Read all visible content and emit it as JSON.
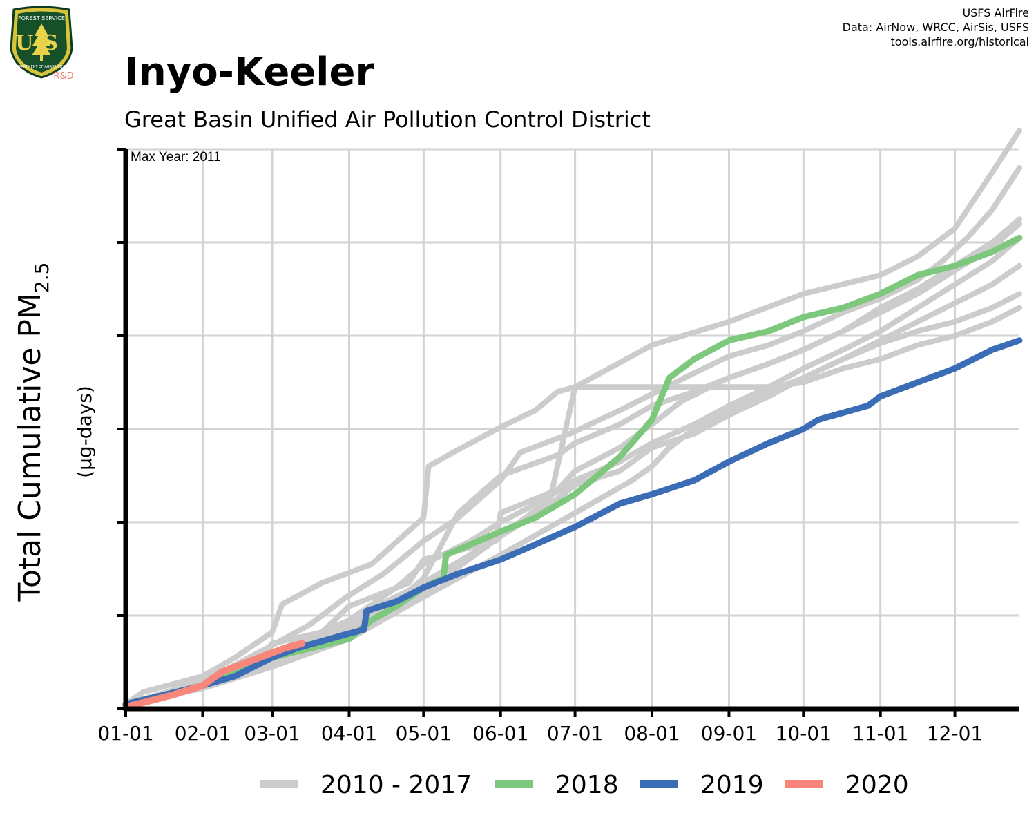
{
  "header": {
    "title": "Inyo-Keeler",
    "subtitle": "Great Basin Unified Air Pollution Control District",
    "credits": [
      "USFS AirFire",
      "Data: AirNow, WRCC, AirSis, USFS",
      "tools.airfire.org/historical"
    ]
  },
  "logo": {
    "top_text": "FOREST SERVICE",
    "letters": "US",
    "bottom_text": "DEPARTMENT OF AGRICULTURE",
    "badge": "R&D"
  },
  "colors": {
    "historical": "#cccccc",
    "y2018": "#7dc87d",
    "y2019": "#3a6db5",
    "y2020": "#f8867a",
    "grid": "#d3d3d3",
    "axis": "#000000"
  },
  "chart_data": {
    "type": "line",
    "annotation": "Max Year: 2011",
    "xlabel": "",
    "ylabel": "Total Cumulative PM",
    "ylabel_subscript": "2.5",
    "ylabel_unit": "(µg-days)",
    "x_tick_labels": [
      "01-01",
      "02-01",
      "03-01",
      "04-01",
      "05-01",
      "06-01",
      "07-01",
      "08-01",
      "09-01",
      "10-01",
      "11-01",
      "12-01"
    ],
    "x_unit": "day of year",
    "xlim": [
      1,
      361
    ],
    "ylim": [
      0,
      6
    ],
    "y_ticks": [
      0,
      1,
      2,
      3,
      4,
      5,
      6
    ],
    "y_tick_labels_shown": false,
    "legend_position": "bottom",
    "legend": [
      "2010 - 2017",
      "2018",
      "2019",
      "2020"
    ],
    "series": [
      {
        "name": "2010 - 2017",
        "group": "historical",
        "x": [
          1,
          8,
          32,
          45,
          60,
          64,
          80,
          100,
          121,
          123,
          135,
          152,
          166,
          175,
          182,
          213,
          244,
          274,
          305,
          320,
          335,
          350,
          361
        ],
        "y": [
          0.05,
          0.18,
          0.35,
          0.55,
          0.82,
          1.12,
          1.35,
          1.55,
          2.05,
          2.6,
          2.78,
          3.02,
          3.2,
          3.4,
          3.45,
          3.9,
          4.15,
          4.45,
          4.65,
          4.85,
          5.15,
          5.75,
          6.2
        ]
      },
      {
        "name": "2010 - 2017",
        "group": "historical",
        "x": [
          1,
          20,
          40,
          60,
          75,
          90,
          105,
          121,
          135,
          152,
          160,
          180,
          200,
          215,
          230,
          244,
          260,
          274,
          290,
          305,
          320,
          330,
          340,
          350,
          361
        ],
        "y": [
          0.05,
          0.2,
          0.4,
          0.68,
          0.9,
          1.2,
          1.45,
          1.8,
          2.05,
          2.45,
          2.75,
          2.95,
          3.2,
          3.4,
          3.6,
          3.78,
          3.9,
          4.05,
          4.25,
          4.4,
          4.6,
          4.8,
          5.05,
          5.35,
          5.8
        ]
      },
      {
        "name": "2010 - 2017",
        "group": "historical",
        "x": [
          1,
          30,
          60,
          90,
          110,
          121,
          135,
          152,
          175,
          182,
          200,
          213,
          230,
          244,
          260,
          274,
          290,
          305,
          320,
          335,
          350,
          361
        ],
        "y": [
          0.05,
          0.22,
          0.55,
          0.9,
          1.15,
          1.4,
          2.1,
          2.5,
          2.72,
          2.85,
          3.05,
          3.25,
          3.4,
          3.55,
          3.7,
          3.85,
          4.05,
          4.3,
          4.5,
          4.75,
          5.0,
          5.25
        ]
      },
      {
        "name": "2010 - 2017",
        "group": "historical",
        "x": [
          1,
          32,
          60,
          91,
          110,
          121,
          140,
          152,
          170,
          182,
          200,
          213,
          230,
          244,
          260,
          274,
          290,
          305,
          320,
          335,
          350,
          361
        ],
        "y": [
          0.05,
          0.25,
          0.6,
          0.95,
          1.3,
          1.55,
          1.8,
          2.0,
          2.25,
          2.45,
          2.65,
          2.85,
          3.05,
          3.25,
          3.45,
          3.65,
          3.85,
          4.05,
          4.3,
          4.55,
          4.8,
          5.05
        ]
      },
      {
        "name": "2010 - 2017",
        "group": "historical",
        "x": [
          1,
          25,
          50,
          60,
          80,
          91,
          115,
          121,
          150,
          152,
          175,
          182,
          200,
          213,
          225,
          244,
          260,
          274,
          290,
          305,
          320,
          335,
          350,
          361
        ],
        "y": [
          0.05,
          0.22,
          0.4,
          0.7,
          0.82,
          1.1,
          1.35,
          1.6,
          1.8,
          2.1,
          2.35,
          2.55,
          2.8,
          3.05,
          3.3,
          3.55,
          3.7,
          3.85,
          4.05,
          4.25,
          4.45,
          4.7,
          4.95,
          5.2
        ]
      },
      {
        "name": "2010 - 2017",
        "group": "historical",
        "x": [
          1,
          32,
          60,
          91,
          121,
          152,
          170,
          182,
          200,
          213,
          230,
          244,
          260,
          274,
          290,
          305,
          320,
          335,
          350,
          361
        ],
        "y": [
          0.05,
          0.22,
          0.5,
          0.85,
          1.25,
          1.85,
          2.15,
          2.4,
          2.55,
          2.8,
          2.95,
          3.15,
          3.35,
          3.55,
          3.75,
          3.95,
          4.15,
          4.35,
          4.55,
          4.75
        ]
      },
      {
        "name": "2010 - 2017",
        "group": "historical",
        "x": [
          1,
          32,
          60,
          91,
          121,
          152,
          182,
          205,
          213,
          220,
          230,
          244,
          260,
          274,
          290,
          305,
          320,
          335,
          350,
          361
        ],
        "y": [
          0.05,
          0.22,
          0.45,
          0.75,
          1.2,
          1.65,
          2.1,
          2.45,
          2.6,
          2.8,
          3.0,
          3.2,
          3.4,
          3.55,
          3.75,
          3.92,
          4.05,
          4.15,
          4.3,
          4.45
        ]
      },
      {
        "name": "2010 - 2017",
        "group": "historical",
        "x": [
          1,
          32,
          60,
          91,
          121,
          152,
          172,
          182,
          195,
          213,
          230,
          244,
          260,
          274,
          290,
          305,
          320,
          335,
          350,
          361
        ],
        "y": [
          0.05,
          0.25,
          0.55,
          0.95,
          1.35,
          1.85,
          2.25,
          3.45,
          3.45,
          3.45,
          3.45,
          3.45,
          3.45,
          3.5,
          3.65,
          3.75,
          3.9,
          4.0,
          4.15,
          4.3
        ]
      },
      {
        "name": "2018",
        "group": "y2018",
        "x": [
          1,
          32,
          60,
          91,
          100,
          110,
          121,
          129,
          130,
          152,
          166,
          182,
          200,
          213,
          220,
          230,
          244,
          260,
          274,
          290,
          305,
          320,
          335,
          350,
          361
        ],
        "y": [
          0.05,
          0.25,
          0.55,
          0.75,
          0.95,
          1.1,
          1.3,
          1.4,
          1.65,
          1.9,
          2.05,
          2.3,
          2.7,
          3.1,
          3.55,
          3.75,
          3.95,
          4.05,
          4.2,
          4.3,
          4.45,
          4.65,
          4.75,
          4.9,
          5.05
        ]
      },
      {
        "name": "2019",
        "group": "y2019",
        "x": [
          1,
          32,
          45,
          60,
          70,
          90,
          97,
          98,
          110,
          121,
          135,
          152,
          165,
          182,
          200,
          213,
          230,
          244,
          260,
          274,
          280,
          300,
          305,
          320,
          335,
          350,
          361
        ],
        "y": [
          0.05,
          0.25,
          0.35,
          0.55,
          0.65,
          0.8,
          0.85,
          1.05,
          1.15,
          1.3,
          1.45,
          1.6,
          1.75,
          1.95,
          2.2,
          2.3,
          2.45,
          2.65,
          2.85,
          3.0,
          3.1,
          3.25,
          3.35,
          3.5,
          3.65,
          3.85,
          3.95
        ]
      },
      {
        "name": "2020",
        "group": "y2020",
        "x": [
          1,
          10,
          20,
          32,
          40,
          50,
          60,
          65,
          72
        ],
        "y": [
          0.02,
          0.08,
          0.15,
          0.25,
          0.4,
          0.5,
          0.6,
          0.65,
          0.7
        ]
      }
    ]
  }
}
